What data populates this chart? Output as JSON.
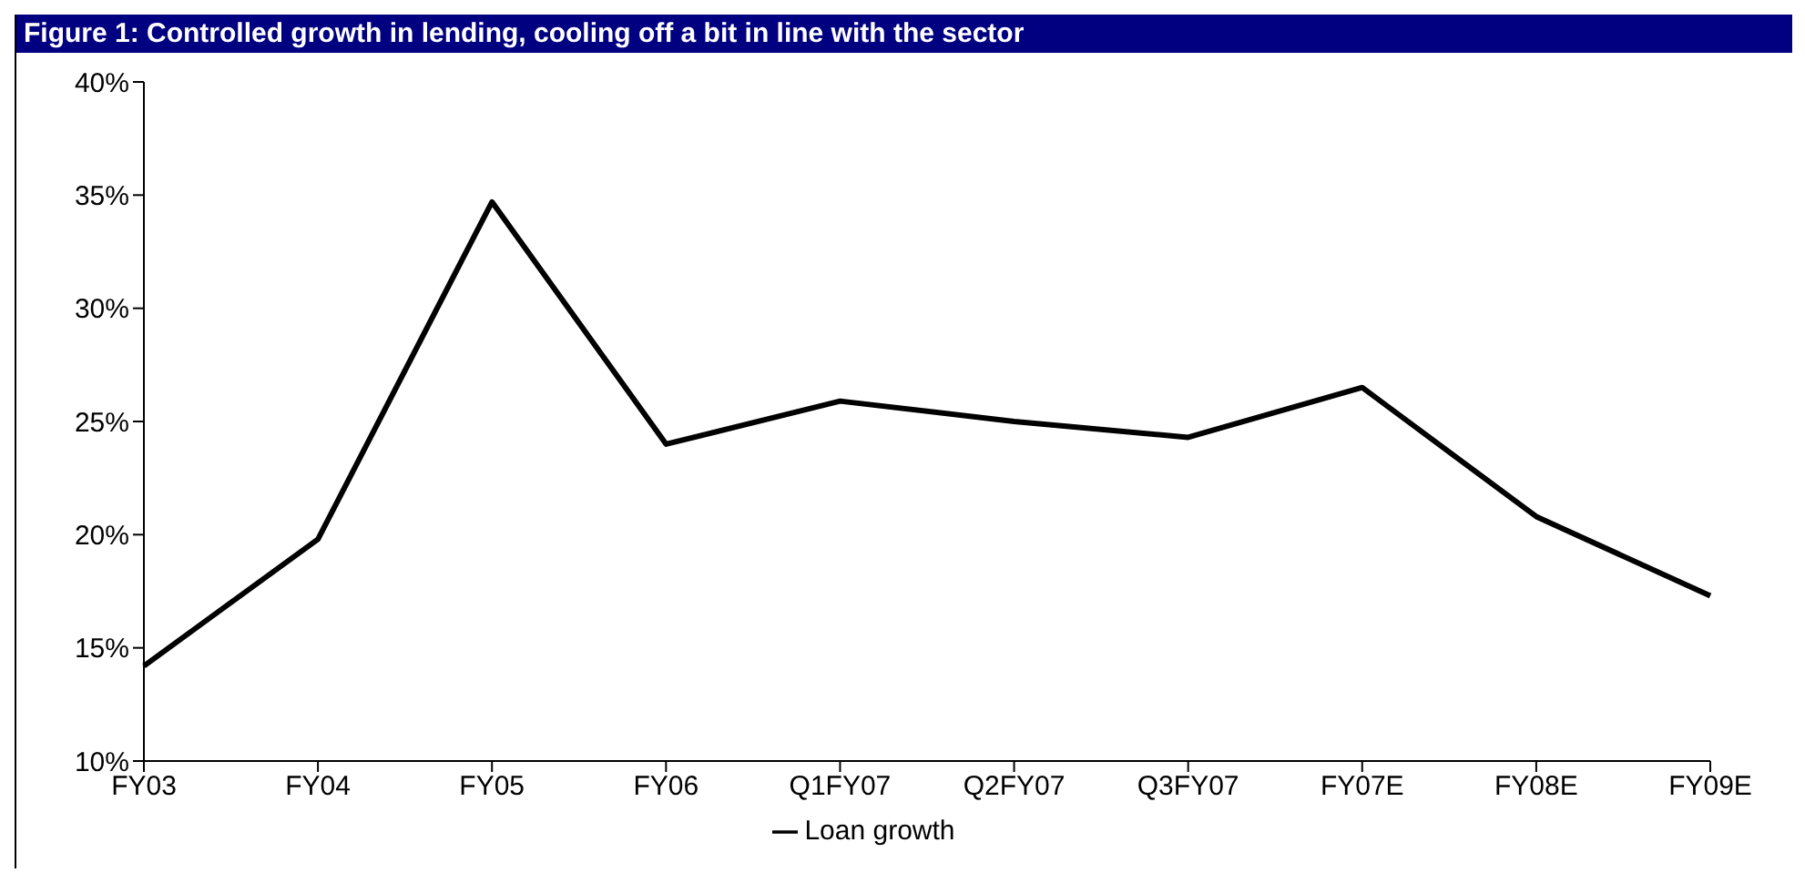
{
  "chart_data": {
    "type": "line",
    "title": "Figure 1: Controlled growth in lending, cooling off a bit in line with the sector",
    "categories": [
      "FY03",
      "FY04",
      "FY05",
      "FY06",
      "Q1FY07",
      "Q2FY07",
      "Q3FY07",
      "FY07E",
      "FY08E",
      "FY09E"
    ],
    "series": [
      {
        "name": "Loan growth",
        "color": "#000000",
        "values": [
          14.2,
          19.8,
          34.7,
          24.0,
          25.9,
          25.0,
          24.3,
          26.5,
          20.8,
          17.3
        ]
      }
    ],
    "ylim": [
      10,
      40
    ],
    "yticks": [
      {
        "value": 10,
        "label": "10%"
      },
      {
        "value": 15,
        "label": "15%"
      },
      {
        "value": 20,
        "label": "20%"
      },
      {
        "value": 25,
        "label": "25%"
      },
      {
        "value": 30,
        "label": "30%"
      },
      {
        "value": 35,
        "label": "35%"
      },
      {
        "value": 40,
        "label": "40%"
      }
    ],
    "grid": false,
    "legend": "bottom",
    "marker": "none",
    "line_style": "solid"
  }
}
